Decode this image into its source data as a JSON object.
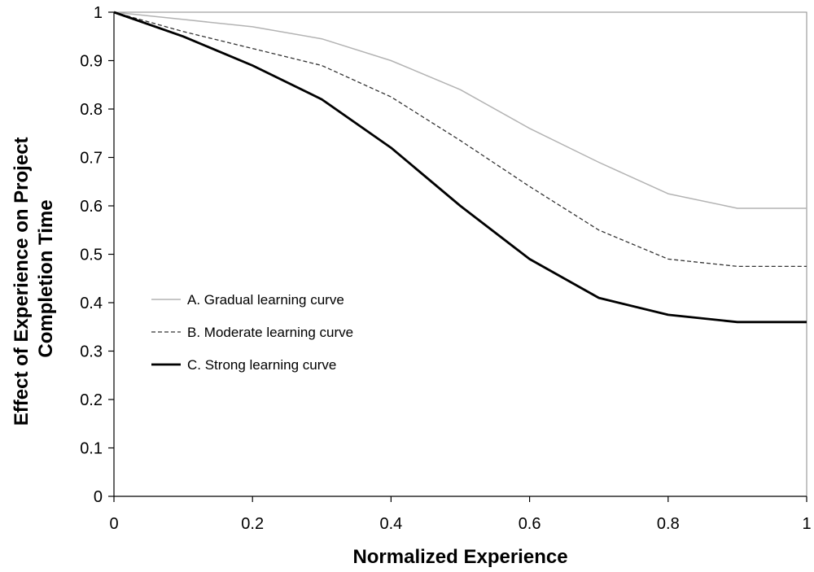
{
  "chart_data": {
    "type": "line",
    "title": "",
    "xlabel": "Normalized Experience",
    "ylabel_lines": [
      "Effect of Experience on Project",
      "Completion Time"
    ],
    "xlim": [
      0,
      1
    ],
    "ylim": [
      0,
      1
    ],
    "grid": false,
    "legend_position": "middle-left",
    "x_ticks": [
      {
        "value": 0,
        "label": "0"
      },
      {
        "value": 0.2,
        "label": "0.2"
      },
      {
        "value": 0.4,
        "label": "0.4"
      },
      {
        "value": 0.6,
        "label": "0.6"
      },
      {
        "value": 0.8,
        "label": "0.8"
      },
      {
        "value": 1,
        "label": "1"
      }
    ],
    "y_ticks": [
      {
        "value": 0,
        "label": "0"
      },
      {
        "value": 0.1,
        "label": "0.1"
      },
      {
        "value": 0.2,
        "label": "0.2"
      },
      {
        "value": 0.3,
        "label": "0.3"
      },
      {
        "value": 0.4,
        "label": "0.4"
      },
      {
        "value": 0.5,
        "label": "0.5"
      },
      {
        "value": 0.6,
        "label": "0.6"
      },
      {
        "value": 0.7,
        "label": "0.7"
      },
      {
        "value": 0.8,
        "label": "0.8"
      },
      {
        "value": 0.9,
        "label": "0.9"
      },
      {
        "value": 1,
        "label": "1"
      }
    ],
    "x": [
      0,
      0.1,
      0.2,
      0.3,
      0.4,
      0.5,
      0.6,
      0.7,
      0.8,
      0.9,
      1.0
    ],
    "series": [
      {
        "key": "gradual",
        "name": "A. Gradual learning curve",
        "color": "#b3b3b3",
        "style": "solid",
        "values": [
          1.0,
          0.985,
          0.97,
          0.945,
          0.9,
          0.84,
          0.76,
          0.69,
          0.625,
          0.595,
          0.595
        ]
      },
      {
        "key": "moderate",
        "name": "B. Moderate learning curve",
        "color": "#333333",
        "style": "dashed",
        "values": [
          1.0,
          0.96,
          0.925,
          0.89,
          0.825,
          0.735,
          0.64,
          0.55,
          0.49,
          0.475,
          0.475
        ]
      },
      {
        "key": "strong",
        "name": "C. Strong learning curve",
        "color": "#000000",
        "style": "bold",
        "values": [
          1.0,
          0.95,
          0.89,
          0.82,
          0.72,
          0.6,
          0.49,
          0.41,
          0.375,
          0.36,
          0.36
        ]
      }
    ]
  }
}
